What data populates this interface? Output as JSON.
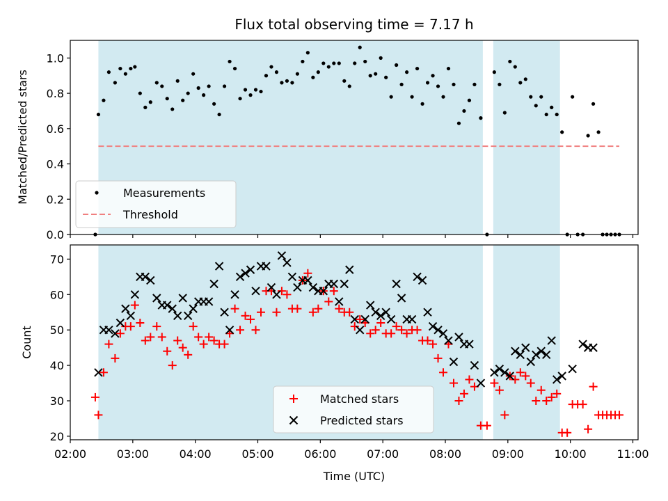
{
  "chart_data": [
    {
      "type": "scatter",
      "title": "Flux total observing time = 7.17 h",
      "xlabel": "",
      "ylabel": "Matched/Predicted stars",
      "xlim": [
        "02:00",
        "11:05"
      ],
      "ylim": [
        0,
        1.1
      ],
      "yticks": [
        "0.0",
        "0.2",
        "0.4",
        "0.6",
        "0.8",
        "1.0"
      ],
      "shaded_spans": [
        [
          "02:27",
          "08:36"
        ],
        [
          "08:46",
          "09:50"
        ]
      ],
      "legend": {
        "placement": "lower-left",
        "entries": [
          "Measurements",
          "Threshold"
        ]
      },
      "colors": {
        "measurements": "#000000",
        "threshold": "#f08080",
        "shade": "#add8e6"
      },
      "series": [
        {
          "name": "Measurements",
          "marker": "dot",
          "x": [
            "02:24",
            "02:27",
            "02:32",
            "02:37",
            "02:43",
            "02:48",
            "02:53",
            "02:58",
            "03:02",
            "03:07",
            "03:12",
            "03:17",
            "03:23",
            "03:28",
            "03:33",
            "03:38",
            "03:43",
            "03:48",
            "03:53",
            "03:58",
            "04:03",
            "04:08",
            "04:13",
            "04:18",
            "04:23",
            "04:28",
            "04:33",
            "04:38",
            "04:43",
            "04:48",
            "04:53",
            "04:58",
            "05:03",
            "05:08",
            "05:13",
            "05:18",
            "05:23",
            "05:28",
            "05:33",
            "05:38",
            "05:43",
            "05:48",
            "05:53",
            "05:58",
            "06:03",
            "06:08",
            "06:13",
            "06:18",
            "06:23",
            "06:28",
            "06:33",
            "06:38",
            "06:43",
            "06:48",
            "06:53",
            "06:58",
            "07:03",
            "07:08",
            "07:13",
            "07:18",
            "07:23",
            "07:28",
            "07:33",
            "07:38",
            "07:43",
            "07:48",
            "07:53",
            "07:58",
            "08:03",
            "08:08",
            "08:13",
            "08:18",
            "08:23",
            "08:28",
            "08:34",
            "08:40",
            "08:47",
            "08:52",
            "08:57",
            "09:02",
            "09:07",
            "09:12",
            "09:17",
            "09:22",
            "09:27",
            "09:32",
            "09:37",
            "09:42",
            "09:47",
            "09:52",
            "09:57",
            "10:02",
            "10:07",
            "10:12",
            "10:17",
            "10:22",
            "10:27",
            "10:31",
            "10:35",
            "10:39",
            "10:43",
            "10:47"
          ],
          "y": [
            0.0,
            0.68,
            0.76,
            0.92,
            0.86,
            0.94,
            0.91,
            0.94,
            0.95,
            0.8,
            0.72,
            0.75,
            0.86,
            0.84,
            0.77,
            0.71,
            0.87,
            0.76,
            0.8,
            0.91,
            0.83,
            0.79,
            0.84,
            0.74,
            0.68,
            0.84,
            0.98,
            0.94,
            0.77,
            0.82,
            0.79,
            0.82,
            0.81,
            0.9,
            0.95,
            0.92,
            0.86,
            0.87,
            0.86,
            0.91,
            0.98,
            1.03,
            0.89,
            0.92,
            0.97,
            0.95,
            0.97,
            0.97,
            0.87,
            0.84,
            0.97,
            1.06,
            0.98,
            0.9,
            0.91,
            1.0,
            0.89,
            0.78,
            0.96,
            0.85,
            0.92,
            0.78,
            0.94,
            0.74,
            0.86,
            0.9,
            0.84,
            0.78,
            0.94,
            0.85,
            0.63,
            0.7,
            0.76,
            0.85,
            0.66,
            0.0,
            0.92,
            0.85,
            0.69,
            0.98,
            0.95,
            0.86,
            0.88,
            0.78,
            0.73,
            0.78,
            0.68,
            0.72,
            0.68,
            0.58,
            0.0,
            0.78,
            0.0,
            0.0,
            0.56,
            0.74,
            0.58,
            0.0,
            0.0,
            0.0,
            0.0,
            0.0
          ]
        },
        {
          "name": "Threshold",
          "line": "dashed",
          "x": [
            "02:27",
            "10:47"
          ],
          "y": [
            0.5,
            0.5
          ]
        }
      ]
    },
    {
      "type": "scatter",
      "xlabel": "Time (UTC)",
      "ylabel": "Count",
      "xlim": [
        "02:00",
        "11:05"
      ],
      "ylim": [
        19,
        74
      ],
      "xticks": [
        "02:00",
        "03:00",
        "04:00",
        "05:00",
        "06:00",
        "07:00",
        "08:00",
        "09:00",
        "10:00",
        "11:00"
      ],
      "yticks": [
        "20",
        "30",
        "40",
        "50",
        "60",
        "70"
      ],
      "shaded_spans": [
        [
          "02:27",
          "08:36"
        ],
        [
          "08:46",
          "09:50"
        ]
      ],
      "legend": {
        "placement": "lower-center",
        "entries": [
          "Matched stars",
          "Predicted stars"
        ]
      },
      "colors": {
        "matched": "#ff0000",
        "predicted": "#000000",
        "shade": "#add8e6"
      },
      "series": [
        {
          "name": "Matched stars",
          "marker": "plus",
          "x": [
            "02:24",
            "02:27",
            "02:32",
            "02:37",
            "02:43",
            "02:48",
            "02:53",
            "02:58",
            "03:02",
            "03:07",
            "03:12",
            "03:17",
            "03:23",
            "03:28",
            "03:33",
            "03:38",
            "03:43",
            "03:48",
            "03:53",
            "03:58",
            "04:03",
            "04:08",
            "04:13",
            "04:18",
            "04:23",
            "04:28",
            "04:33",
            "04:38",
            "04:43",
            "04:48",
            "04:53",
            "04:58",
            "05:03",
            "05:08",
            "05:13",
            "05:18",
            "05:23",
            "05:28",
            "05:33",
            "05:38",
            "05:43",
            "05:48",
            "05:53",
            "05:58",
            "06:03",
            "06:08",
            "06:13",
            "06:18",
            "06:23",
            "06:28",
            "06:33",
            "06:38",
            "06:43",
            "06:48",
            "06:53",
            "06:58",
            "07:03",
            "07:08",
            "07:13",
            "07:18",
            "07:23",
            "07:28",
            "07:33",
            "07:38",
            "07:43",
            "07:48",
            "07:53",
            "07:58",
            "08:03",
            "08:08",
            "08:13",
            "08:18",
            "08:23",
            "08:28",
            "08:34",
            "08:40",
            "08:47",
            "08:52",
            "08:57",
            "09:02",
            "09:07",
            "09:12",
            "09:17",
            "09:22",
            "09:27",
            "09:32",
            "09:37",
            "09:42",
            "09:47",
            "09:52",
            "09:57",
            "10:02",
            "10:07",
            "10:12",
            "10:17",
            "10:22",
            "10:27",
            "10:31",
            "10:35",
            "10:39",
            "10:43",
            "10:47"
          ],
          "y": [
            31,
            26,
            38,
            46,
            42,
            49,
            51,
            51,
            57,
            52,
            47,
            48,
            51,
            48,
            44,
            40,
            47,
            45,
            43,
            51,
            48,
            46,
            48,
            47,
            46,
            46,
            49,
            56,
            50,
            54,
            53,
            50,
            55,
            61,
            61,
            55,
            61,
            60,
            56,
            56,
            64,
            66,
            55,
            56,
            61,
            58,
            61,
            56,
            55,
            55,
            51,
            53,
            52,
            49,
            50,
            52,
            49,
            49,
            51,
            50,
            49,
            50,
            50,
            47,
            47,
            46,
            42,
            38,
            46,
            35,
            30,
            32,
            36,
            34,
            23,
            23,
            35,
            33,
            26,
            37,
            36,
            38,
            37,
            35,
            30,
            33,
            30,
            31,
            32,
            21,
            21,
            29,
            29,
            29,
            22,
            34,
            26,
            26,
            26,
            26,
            26,
            26
          ]
        },
        {
          "name": "Predicted stars",
          "marker": "x",
          "x": [
            "02:27",
            "02:32",
            "02:37",
            "02:43",
            "02:48",
            "02:53",
            "02:58",
            "03:02",
            "03:07",
            "03:12",
            "03:17",
            "03:23",
            "03:28",
            "03:33",
            "03:38",
            "03:43",
            "03:48",
            "03:53",
            "03:58",
            "04:03",
            "04:08",
            "04:13",
            "04:18",
            "04:23",
            "04:28",
            "04:33",
            "04:38",
            "04:43",
            "04:48",
            "04:53",
            "04:58",
            "05:03",
            "05:08",
            "05:13",
            "05:18",
            "05:23",
            "05:28",
            "05:33",
            "05:38",
            "05:43",
            "05:48",
            "05:53",
            "05:58",
            "06:03",
            "06:08",
            "06:13",
            "06:18",
            "06:23",
            "06:28",
            "06:33",
            "06:38",
            "06:43",
            "06:48",
            "06:53",
            "06:58",
            "07:03",
            "07:08",
            "07:13",
            "07:18",
            "07:23",
            "07:28",
            "07:33",
            "07:38",
            "07:43",
            "07:48",
            "07:53",
            "07:58",
            "08:03",
            "08:08",
            "08:13",
            "08:18",
            "08:23",
            "08:28",
            "08:34",
            "08:47",
            "08:52",
            "08:57",
            "09:02",
            "09:07",
            "09:12",
            "09:17",
            "09:22",
            "09:27",
            "09:32",
            "09:37",
            "09:42",
            "09:47",
            "09:52",
            "10:02",
            "10:12",
            "10:17",
            "10:22"
          ],
          "y": [
            38,
            50,
            50,
            49,
            52,
            56,
            54,
            60,
            65,
            65,
            64,
            59,
            57,
            57,
            56,
            54,
            59,
            54,
            56,
            58,
            58,
            58,
            63,
            68,
            55,
            50,
            60,
            65,
            66,
            67,
            61,
            68,
            68,
            62,
            60,
            71,
            69,
            65,
            62,
            64,
            64,
            62,
            61,
            61,
            63,
            63,
            58,
            63,
            67,
            53,
            50,
            53,
            57,
            55,
            54,
            55,
            53,
            63,
            59,
            53,
            53,
            65,
            64,
            55,
            51,
            50,
            49,
            47,
            41,
            48,
            46,
            46,
            40,
            35,
            38,
            39,
            38,
            37,
            44,
            43,
            45,
            41,
            43,
            44,
            43,
            47,
            36,
            37,
            39,
            46,
            45,
            45
          ]
        }
      ]
    }
  ]
}
